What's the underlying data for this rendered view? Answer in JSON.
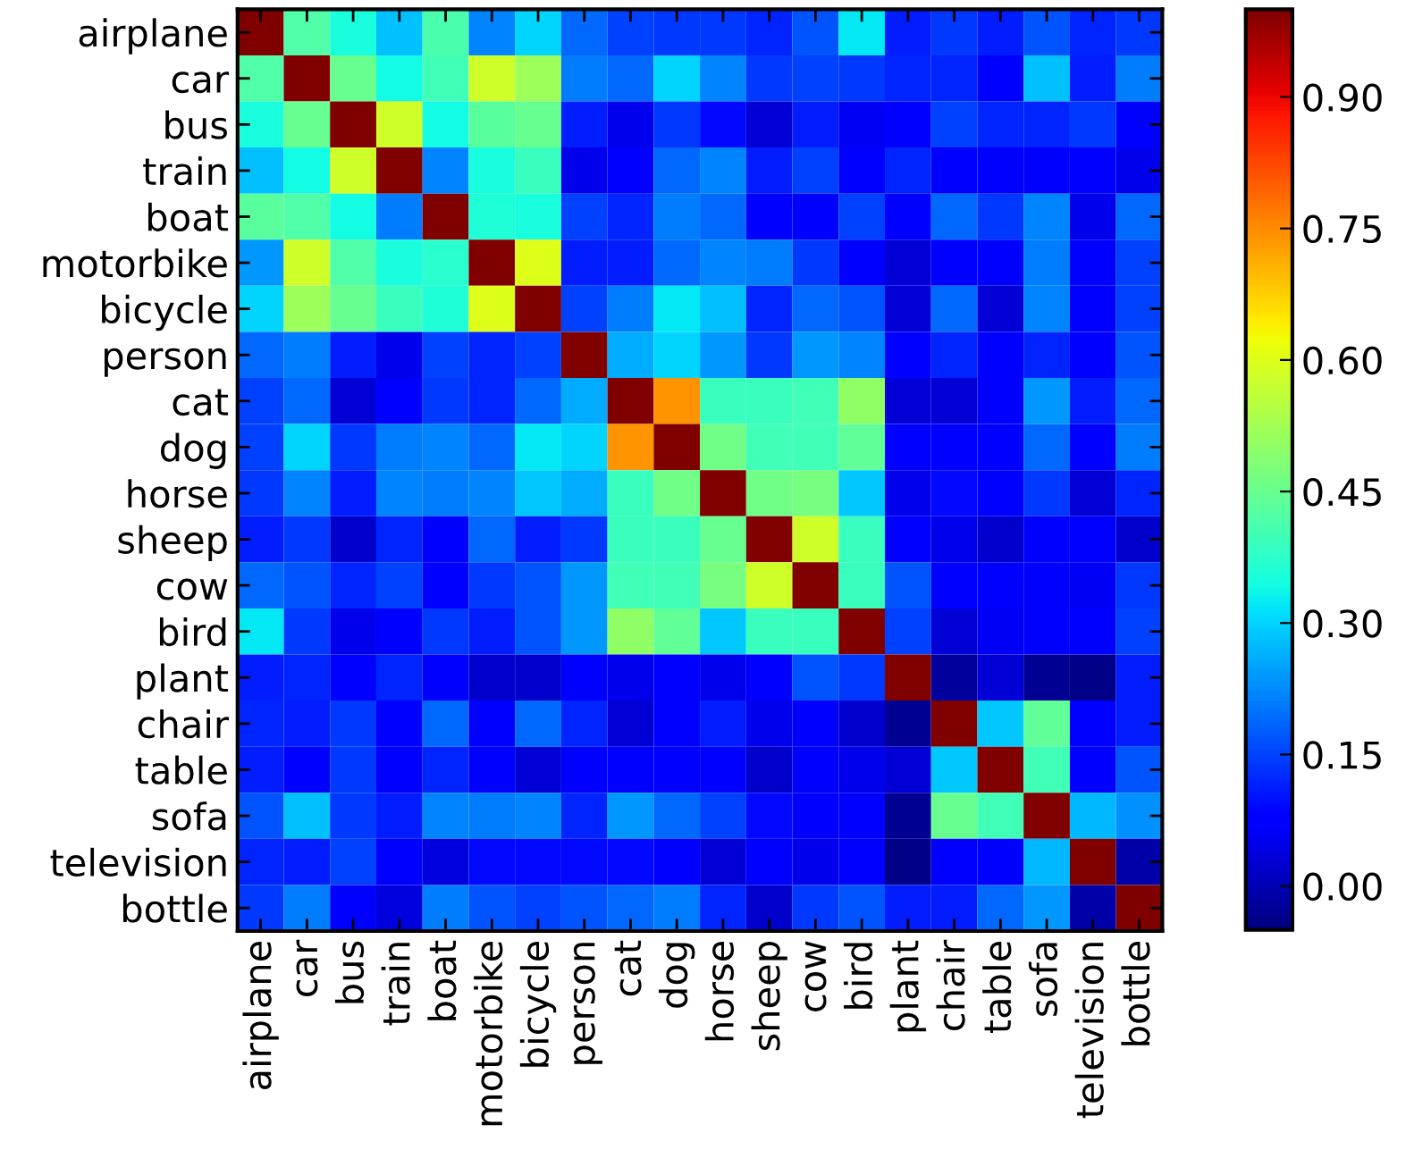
{
  "chart_data": {
    "type": "heatmap",
    "categories": [
      "airplane",
      "car",
      "bus",
      "train",
      "boat",
      "motorbike",
      "bicycle",
      "person",
      "cat",
      "dog",
      "horse",
      "sheep",
      "cow",
      "bird",
      "plant",
      "chair",
      "table",
      "sofa",
      "television",
      "bottle"
    ],
    "y_categories": [
      "airplane",
      "car",
      "bus",
      "train",
      "boat",
      "motorbike",
      "bicycle",
      "person",
      "cat",
      "dog",
      "horse",
      "sheep",
      "cow",
      "bird",
      "plant",
      "chair",
      "table",
      "sofa",
      "television",
      "bottle"
    ],
    "cells": [
      [
        1.0,
        0.42,
        0.35,
        0.28,
        0.41,
        0.22,
        0.3,
        0.19,
        0.15,
        0.14,
        0.14,
        0.12,
        0.17,
        0.32,
        0.11,
        0.14,
        0.11,
        0.17,
        0.12,
        0.14
      ],
      [
        0.42,
        1.0,
        0.45,
        0.34,
        0.4,
        0.58,
        0.52,
        0.21,
        0.19,
        0.3,
        0.22,
        0.14,
        0.15,
        0.14,
        0.12,
        0.12,
        0.08,
        0.28,
        0.11,
        0.21
      ],
      [
        0.35,
        0.45,
        1.0,
        0.58,
        0.34,
        0.43,
        0.45,
        0.11,
        0.05,
        0.14,
        0.09,
        0.03,
        0.11,
        0.06,
        0.08,
        0.15,
        0.12,
        0.12,
        0.14,
        0.07
      ],
      [
        0.28,
        0.34,
        0.58,
        1.0,
        0.22,
        0.35,
        0.39,
        0.05,
        0.08,
        0.19,
        0.22,
        0.11,
        0.15,
        0.07,
        0.12,
        0.07,
        0.07,
        0.07,
        0.07,
        0.05
      ],
      [
        0.43,
        0.42,
        0.34,
        0.21,
        1.0,
        0.36,
        0.35,
        0.15,
        0.12,
        0.21,
        0.19,
        0.07,
        0.07,
        0.15,
        0.07,
        0.19,
        0.14,
        0.22,
        0.05,
        0.19
      ],
      [
        0.24,
        0.58,
        0.42,
        0.35,
        0.37,
        1.0,
        0.6,
        0.11,
        0.11,
        0.19,
        0.22,
        0.21,
        0.14,
        0.08,
        0.03,
        0.07,
        0.07,
        0.21,
        0.07,
        0.15
      ],
      [
        0.3,
        0.52,
        0.45,
        0.39,
        0.36,
        0.6,
        1.0,
        0.15,
        0.21,
        0.32,
        0.28,
        0.12,
        0.19,
        0.17,
        0.03,
        0.19,
        0.03,
        0.22,
        0.07,
        0.15
      ],
      [
        0.19,
        0.21,
        0.11,
        0.05,
        0.15,
        0.12,
        0.15,
        1.0,
        0.26,
        0.3,
        0.24,
        0.14,
        0.24,
        0.22,
        0.07,
        0.12,
        0.07,
        0.12,
        0.07,
        0.17
      ],
      [
        0.15,
        0.19,
        0.03,
        0.08,
        0.14,
        0.12,
        0.19,
        0.26,
        1.0,
        0.74,
        0.39,
        0.39,
        0.4,
        0.5,
        0.03,
        0.03,
        0.07,
        0.24,
        0.11,
        0.19
      ],
      [
        0.15,
        0.3,
        0.14,
        0.21,
        0.22,
        0.19,
        0.32,
        0.3,
        0.74,
        1.0,
        0.46,
        0.4,
        0.4,
        0.44,
        0.07,
        0.07,
        0.07,
        0.19,
        0.07,
        0.21
      ],
      [
        0.14,
        0.22,
        0.11,
        0.22,
        0.21,
        0.22,
        0.29,
        0.26,
        0.39,
        0.46,
        1.0,
        0.46,
        0.47,
        0.29,
        0.05,
        0.09,
        0.07,
        0.14,
        0.03,
        0.12
      ],
      [
        0.11,
        0.14,
        0.02,
        0.12,
        0.07,
        0.19,
        0.11,
        0.14,
        0.39,
        0.39,
        0.45,
        1.0,
        0.58,
        0.39,
        0.07,
        0.05,
        0.02,
        0.07,
        0.07,
        0.02
      ],
      [
        0.19,
        0.17,
        0.12,
        0.15,
        0.07,
        0.14,
        0.17,
        0.24,
        0.4,
        0.4,
        0.47,
        0.58,
        1.0,
        0.39,
        0.17,
        0.07,
        0.07,
        0.07,
        0.06,
        0.14
      ],
      [
        0.32,
        0.14,
        0.05,
        0.07,
        0.14,
        0.11,
        0.17,
        0.24,
        0.5,
        0.44,
        0.29,
        0.39,
        0.39,
        1.0,
        0.15,
        0.03,
        0.06,
        0.07,
        0.07,
        0.15
      ],
      [
        0.11,
        0.12,
        0.07,
        0.12,
        0.07,
        0.02,
        0.02,
        0.07,
        0.05,
        0.07,
        0.05,
        0.08,
        0.17,
        0.14,
        1.0,
        -0.02,
        0.03,
        -0.03,
        -0.04,
        0.11
      ],
      [
        0.12,
        0.11,
        0.14,
        0.07,
        0.19,
        0.07,
        0.19,
        0.12,
        0.03,
        0.07,
        0.11,
        0.05,
        0.07,
        0.02,
        -0.03,
        1.0,
        0.29,
        0.44,
        0.07,
        0.11
      ],
      [
        0.11,
        0.08,
        0.14,
        0.07,
        0.12,
        0.07,
        0.03,
        0.07,
        0.07,
        0.07,
        0.07,
        0.02,
        0.07,
        0.05,
        0.03,
        0.29,
        1.0,
        0.4,
        0.07,
        0.17
      ],
      [
        0.17,
        0.28,
        0.14,
        0.11,
        0.22,
        0.21,
        0.22,
        0.12,
        0.24,
        0.19,
        0.15,
        0.09,
        0.07,
        0.07,
        -0.03,
        0.45,
        0.4,
        1.0,
        0.27,
        0.23
      ],
      [
        0.12,
        0.11,
        0.15,
        0.07,
        0.04,
        0.09,
        0.09,
        0.09,
        0.09,
        0.07,
        0.03,
        0.07,
        0.05,
        0.07,
        -0.04,
        0.07,
        0.07,
        0.27,
        1.0,
        -0.01
      ],
      [
        0.14,
        0.21,
        0.07,
        0.04,
        0.21,
        0.17,
        0.15,
        0.17,
        0.19,
        0.21,
        0.12,
        0.02,
        0.14,
        0.17,
        0.11,
        0.11,
        0.19,
        0.24,
        -0.01,
        1.0
      ]
    ],
    "clim": [
      -0.05,
      1.0
    ],
    "cticks": [
      {
        "value": 0.0,
        "label": "0.00"
      },
      {
        "value": 0.15,
        "label": "0.15"
      },
      {
        "value": 0.3,
        "label": "0.30"
      },
      {
        "value": 0.45,
        "label": "0.45"
      },
      {
        "value": 0.6,
        "label": "0.60"
      },
      {
        "value": 0.75,
        "label": "0.75"
      },
      {
        "value": 0.9,
        "label": "0.90"
      }
    ]
  }
}
